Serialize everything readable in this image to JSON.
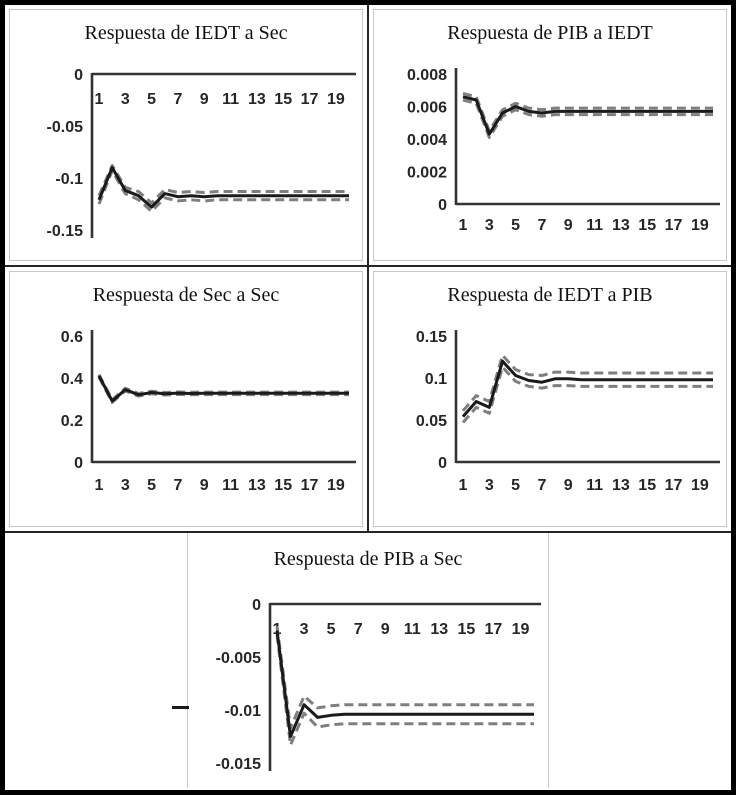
{
  "colors": {
    "line": "#1a1a1a",
    "band": "#7f7f7f",
    "axis": "#333333",
    "panel_border": "#c8c8c8",
    "frame": "#000000"
  },
  "chart_data": [
    {
      "type": "line",
      "title": "Respuesta de IEDT a Sec",
      "x": [
        1,
        2,
        3,
        4,
        5,
        6,
        7,
        8,
        9,
        10,
        11,
        12,
        13,
        14,
        15,
        16,
        17,
        18,
        19,
        20
      ],
      "x_tick_labels": [
        "1",
        "3",
        "5",
        "7",
        "9",
        "11",
        "13",
        "15",
        "17",
        "19"
      ],
      "x_axis_position": "top",
      "ylim": [
        -0.15,
        0
      ],
      "y_ticks": [
        {
          "label": "0",
          "value": 0
        },
        {
          "label": "-0.05",
          "value": -0.05
        },
        {
          "label": "-0.1",
          "value": -0.1
        },
        {
          "label": "-0.15",
          "value": -0.15
        }
      ],
      "grid": false,
      "legend": "none",
      "series": [
        {
          "name": "response",
          "style": "solid",
          "values": [
            -0.121,
            -0.09,
            -0.112,
            -0.117,
            -0.128,
            -0.115,
            -0.118,
            -0.117,
            -0.118,
            -0.117,
            -0.117,
            -0.117,
            -0.117,
            -0.117,
            -0.117,
            -0.117,
            -0.117,
            -0.117,
            -0.117,
            -0.117
          ]
        },
        {
          "name": "upper_band",
          "style": "dashed",
          "values": [
            -0.117,
            -0.088,
            -0.109,
            -0.113,
            -0.124,
            -0.111,
            -0.114,
            -0.113,
            -0.114,
            -0.113,
            -0.113,
            -0.113,
            -0.113,
            -0.113,
            -0.113,
            -0.113,
            -0.113,
            -0.113,
            -0.113,
            -0.113
          ]
        },
        {
          "name": "lower_band",
          "style": "dashed",
          "values": [
            -0.125,
            -0.093,
            -0.115,
            -0.121,
            -0.132,
            -0.119,
            -0.122,
            -0.121,
            -0.122,
            -0.121,
            -0.121,
            -0.121,
            -0.121,
            -0.121,
            -0.121,
            -0.121,
            -0.121,
            -0.121,
            -0.121,
            -0.121
          ]
        }
      ]
    },
    {
      "type": "line",
      "title": "Respuesta de PIB a IEDT",
      "x": [
        1,
        2,
        3,
        4,
        5,
        6,
        7,
        8,
        9,
        10,
        11,
        12,
        13,
        14,
        15,
        16,
        17,
        18,
        19,
        20
      ],
      "x_tick_labels": [
        "1",
        "3",
        "5",
        "7",
        "9",
        "11",
        "13",
        "15",
        "17",
        "19"
      ],
      "x_axis_position": "bottom",
      "ylim": [
        0,
        0.008
      ],
      "y_ticks": [
        {
          "label": "0.008",
          "value": 0.008
        },
        {
          "label": "0.006",
          "value": 0.006
        },
        {
          "label": "0.004",
          "value": 0.004
        },
        {
          "label": "0.002",
          "value": 0.002
        },
        {
          "label": "0",
          "value": 0
        }
      ],
      "grid": false,
      "legend": "none",
      "series": [
        {
          "name": "response",
          "style": "solid",
          "values": [
            0.0066,
            0.0064,
            0.0043,
            0.0056,
            0.006,
            0.0057,
            0.0056,
            0.0057,
            0.0057,
            0.0057,
            0.0057,
            0.0057,
            0.0057,
            0.0057,
            0.0057,
            0.0057,
            0.0057,
            0.0057,
            0.0057,
            0.0057
          ]
        },
        {
          "name": "upper_band",
          "style": "dashed",
          "values": [
            0.0068,
            0.0066,
            0.0045,
            0.0058,
            0.0062,
            0.0059,
            0.0058,
            0.0059,
            0.0059,
            0.0059,
            0.0059,
            0.0059,
            0.0059,
            0.0059,
            0.0059,
            0.0059,
            0.0059,
            0.0059,
            0.0059,
            0.0059
          ]
        },
        {
          "name": "lower_band",
          "style": "dashed",
          "values": [
            0.0064,
            0.0062,
            0.0041,
            0.0054,
            0.0058,
            0.0055,
            0.0054,
            0.0055,
            0.0055,
            0.0055,
            0.0055,
            0.0055,
            0.0055,
            0.0055,
            0.0055,
            0.0055,
            0.0055,
            0.0055,
            0.0055,
            0.0055
          ]
        }
      ]
    },
    {
      "type": "line",
      "title": "Respuesta de Sec a Sec",
      "x": [
        1,
        2,
        3,
        4,
        5,
        6,
        7,
        8,
        9,
        10,
        11,
        12,
        13,
        14,
        15,
        16,
        17,
        18,
        19,
        20
      ],
      "x_tick_labels": [
        "1",
        "3",
        "5",
        "7",
        "9",
        "11",
        "13",
        "15",
        "17",
        "19"
      ],
      "x_axis_position": "bottom",
      "ylim": [
        0,
        0.6
      ],
      "y_ticks": [
        {
          "label": "0.6",
          "value": 0.6
        },
        {
          "label": "0.4",
          "value": 0.4
        },
        {
          "label": "0.2",
          "value": 0.2
        },
        {
          "label": "0",
          "value": 0
        }
      ],
      "grid": false,
      "legend": "none",
      "series": [
        {
          "name": "response",
          "style": "solid",
          "values": [
            0.41,
            0.29,
            0.345,
            0.32,
            0.331,
            0.325,
            0.328,
            0.326,
            0.327,
            0.327,
            0.327,
            0.327,
            0.327,
            0.327,
            0.327,
            0.327,
            0.327,
            0.327,
            0.327,
            0.327
          ]
        },
        {
          "name": "upper_band",
          "style": "dashed",
          "values": [
            0.416,
            0.296,
            0.351,
            0.326,
            0.337,
            0.331,
            0.334,
            0.332,
            0.333,
            0.333,
            0.333,
            0.333,
            0.333,
            0.333,
            0.333,
            0.333,
            0.333,
            0.333,
            0.333,
            0.333
          ]
        },
        {
          "name": "lower_band",
          "style": "dashed",
          "values": [
            0.404,
            0.284,
            0.339,
            0.314,
            0.325,
            0.319,
            0.322,
            0.32,
            0.321,
            0.321,
            0.321,
            0.321,
            0.321,
            0.321,
            0.321,
            0.321,
            0.321,
            0.321,
            0.321,
            0.321
          ]
        }
      ]
    },
    {
      "type": "line",
      "title": "Respuesta de IEDT a PIB",
      "x": [
        1,
        2,
        3,
        4,
        5,
        6,
        7,
        8,
        9,
        10,
        11,
        12,
        13,
        14,
        15,
        16,
        17,
        18,
        19,
        20
      ],
      "x_tick_labels": [
        "1",
        "3",
        "5",
        "7",
        "9",
        "11",
        "13",
        "15",
        "17",
        "19"
      ],
      "x_axis_position": "bottom",
      "ylim": [
        0,
        0.15
      ],
      "y_ticks": [
        {
          "label": "0.15",
          "value": 0.15
        },
        {
          "label": "0.1",
          "value": 0.1
        },
        {
          "label": "0.05",
          "value": 0.05
        },
        {
          "label": "0",
          "value": 0
        }
      ],
      "grid": false,
      "legend": "none",
      "series": [
        {
          "name": "response",
          "style": "solid",
          "values": [
            0.054,
            0.072,
            0.065,
            0.12,
            0.103,
            0.097,
            0.095,
            0.099,
            0.099,
            0.098,
            0.098,
            0.098,
            0.098,
            0.098,
            0.098,
            0.098,
            0.098,
            0.098,
            0.098,
            0.098
          ]
        },
        {
          "name": "upper_band",
          "style": "dashed",
          "values": [
            0.061,
            0.079,
            0.072,
            0.127,
            0.11,
            0.104,
            0.103,
            0.107,
            0.107,
            0.106,
            0.106,
            0.106,
            0.106,
            0.106,
            0.106,
            0.106,
            0.106,
            0.106,
            0.106,
            0.106
          ]
        },
        {
          "name": "lower_band",
          "style": "dashed",
          "values": [
            0.047,
            0.065,
            0.058,
            0.113,
            0.096,
            0.09,
            0.088,
            0.091,
            0.091,
            0.09,
            0.09,
            0.09,
            0.09,
            0.09,
            0.09,
            0.09,
            0.09,
            0.09,
            0.09,
            0.09
          ]
        }
      ]
    },
    {
      "type": "line",
      "title": "Respuesta de PIB a Sec",
      "x": [
        1,
        2,
        3,
        4,
        5,
        6,
        7,
        8,
        9,
        10,
        11,
        12,
        13,
        14,
        15,
        16,
        17,
        18,
        19,
        20
      ],
      "x_tick_labels": [
        "1",
        "3",
        "5",
        "7",
        "9",
        "11",
        "13",
        "15",
        "17",
        "19"
      ],
      "x_axis_position": "top",
      "ylim": [
        -0.015,
        0
      ],
      "y_ticks": [
        {
          "label": "0",
          "value": 0
        },
        {
          "label": "-0.005",
          "value": -0.005
        },
        {
          "label": "-0.01",
          "value": -0.01
        },
        {
          "label": "-0.015",
          "value": -0.015
        }
      ],
      "grid": false,
      "legend": "none",
      "series": [
        {
          "name": "response",
          "style": "solid",
          "values": [
            -0.0025,
            -0.0125,
            -0.0095,
            -0.0107,
            -0.0105,
            -0.0104,
            -0.0104,
            -0.0104,
            -0.0104,
            -0.0104,
            -0.0104,
            -0.0104,
            -0.0104,
            -0.0104,
            -0.0104,
            -0.0104,
            -0.0104,
            -0.0104,
            -0.0104,
            -0.0104
          ]
        },
        {
          "name": "upper_band",
          "style": "dashed",
          "values": [
            -0.0021,
            -0.0117,
            -0.0087,
            -0.0098,
            -0.0096,
            -0.0095,
            -0.0095,
            -0.0095,
            -0.0095,
            -0.0095,
            -0.0095,
            -0.0095,
            -0.0095,
            -0.0095,
            -0.0095,
            -0.0095,
            -0.0095,
            -0.0095,
            -0.0095,
            -0.0095
          ]
        },
        {
          "name": "lower_band",
          "style": "dashed",
          "values": [
            -0.0029,
            -0.0133,
            -0.0103,
            -0.0116,
            -0.0114,
            -0.0113,
            -0.0113,
            -0.0113,
            -0.0113,
            -0.0113,
            -0.0113,
            -0.0113,
            -0.0113,
            -0.0113,
            -0.0113,
            -0.0113,
            -0.0113,
            -0.0113,
            -0.0113,
            -0.0113
          ]
        }
      ]
    }
  ]
}
